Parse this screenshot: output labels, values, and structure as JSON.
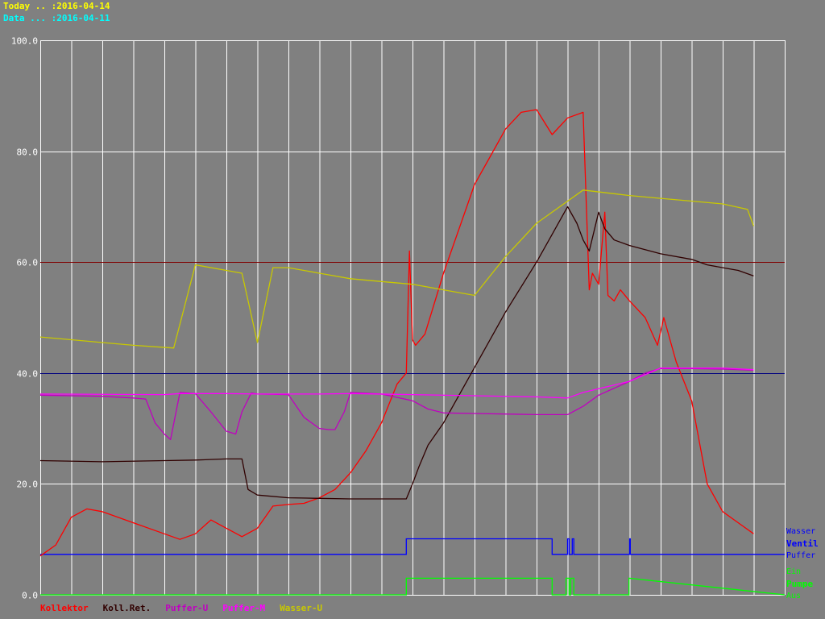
{
  "header": {
    "today": "Today .. :2016-04-14",
    "data": "Data ... :2016-04-11",
    "today_color": "#ffff00",
    "data_color": "#00ffff"
  },
  "colors": {
    "background": "#808080",
    "grid": "#ffffff",
    "axis": "#ffffff"
  },
  "right_labels": {
    "ventil_top": "Wasser",
    "ventil": "Ventil",
    "ventil_bottom": "Puffer",
    "pumpe_top": "Ein",
    "pumpe": "Pumpe",
    "pumpe_bottom": "Aus"
  },
  "chart_data": {
    "type": "line",
    "title": "",
    "xlabel": "",
    "ylabel": "",
    "ylim": [
      0,
      100
    ],
    "yticks": [
      "0.0",
      "20.0",
      "40.0",
      "60.0",
      "80.0",
      "100.0"
    ],
    "grid": true,
    "xlim": [
      0,
      24
    ],
    "legend_position": "bottom-left",
    "reference_lines": [
      {
        "y": 60,
        "color": "#800000"
      },
      {
        "y": 40,
        "color": "#000080"
      }
    ],
    "series": [
      {
        "name": "Kollektor",
        "color": "#ff0000",
        "x": [
          0,
          0.5,
          1,
          1.5,
          2,
          3,
          4,
          4.5,
          5,
          5.5,
          6,
          6.5,
          7,
          7.5,
          8,
          8.5,
          9,
          9.5,
          10,
          10.5,
          11,
          11.5,
          11.8,
          11.9,
          12.0,
          12.1,
          12.4,
          13,
          13.5,
          14,
          14.5,
          15,
          15.5,
          16,
          16.5,
          17,
          17.5,
          17.7,
          17.8,
          18.0,
          18.2,
          18.3,
          18.5,
          18.7,
          19,
          19.5,
          19.9,
          20.1,
          20.5,
          21,
          21.5,
          22,
          22.5,
          23.0
        ],
        "y": [
          7,
          9,
          14,
          15.5,
          15,
          13,
          11,
          10,
          11,
          13.5,
          12,
          10.5,
          12,
          16,
          16.3,
          16.5,
          17.5,
          19,
          22,
          26,
          31,
          38,
          40,
          62,
          46,
          45,
          47,
          58,
          66,
          74,
          79,
          84,
          87,
          87.5,
          83,
          86,
          87,
          55,
          58,
          56,
          69,
          54,
          53,
          55,
          53,
          50,
          45,
          50,
          42,
          35,
          20,
          15,
          13,
          11
        ]
      },
      {
        "name": "Koll.Ret.",
        "color": "#300000",
        "x": [
          0,
          2,
          4,
          5,
          6,
          6.5,
          6.7,
          7,
          8,
          9,
          10,
          11,
          11.8,
          12.0,
          12.2,
          12.5,
          13,
          14,
          15,
          16,
          16.5,
          17,
          17.3,
          17.5,
          17.7,
          18.0,
          18.2,
          18.5,
          19,
          20,
          21,
          21.5,
          22,
          22.5,
          23.0
        ],
        "y": [
          24.2,
          24,
          24.2,
          24.3,
          24.5,
          24.5,
          19,
          18,
          17.5,
          17.4,
          17.3,
          17.3,
          17.3,
          20,
          23,
          27,
          31,
          41,
          51,
          60,
          65,
          70,
          67,
          64,
          62,
          69,
          66,
          64,
          63,
          61.5,
          60.5,
          59.5,
          59,
          58.5,
          57.5
        ]
      },
      {
        "name": "Puffer-U",
        "color": "#c000c0",
        "x": [
          0,
          2,
          3,
          3.4,
          3.7,
          4.0,
          4.2,
          4.5,
          5,
          5.5,
          6,
          6.3,
          6.5,
          6.8,
          7,
          8,
          8.5,
          9,
          9.3,
          9.5,
          9.8,
          10,
          11,
          12,
          12.5,
          13,
          14,
          15,
          16,
          16.5,
          17,
          17.5,
          18,
          19,
          19.5,
          20,
          21,
          22,
          23.0
        ],
        "y": [
          36,
          35.8,
          35.5,
          35.3,
          31,
          29,
          28,
          36.5,
          36.3,
          33,
          29.5,
          29,
          33,
          36.4,
          36.2,
          36.1,
          32,
          30,
          29.8,
          29.8,
          33,
          36.5,
          36.2,
          35,
          33.5,
          32.8,
          32.7,
          32.6,
          32.5,
          32.5,
          32.5,
          34,
          36,
          38.5,
          40,
          40.8,
          40.8,
          40.7,
          40.5
        ]
      },
      {
        "name": "Puffer-M",
        "color": "#ff00ff",
        "x": [
          0,
          4,
          4.5,
          6,
          7,
          8,
          9,
          10,
          12,
          14,
          16,
          17,
          17.5,
          19,
          20,
          22,
          23.0
        ],
        "y": [
          36.2,
          36.1,
          36.3,
          36.3,
          36.2,
          36.2,
          36.2,
          36.3,
          36.1,
          35.9,
          35.7,
          35.5,
          36.5,
          38.5,
          40.9,
          40.9,
          40.6
        ]
      },
      {
        "name": "Wasser-U",
        "color": "#c8c800",
        "x": [
          0,
          1,
          2,
          3,
          4.3,
          5.0,
          6.0,
          6.5,
          7.0,
          7.5,
          8,
          9,
          10,
          11,
          12,
          13,
          14.0,
          15,
          16,
          17.5,
          19,
          20,
          21,
          22,
          22.8,
          23.0
        ],
        "y": [
          46.5,
          46,
          45.5,
          45,
          44.5,
          59.5,
          58.5,
          58,
          45.5,
          59,
          59,
          58,
          57,
          56.5,
          56,
          55,
          54,
          61,
          67,
          73,
          72,
          71.5,
          71,
          70.5,
          69.5,
          66.5
        ]
      }
    ],
    "digital": [
      {
        "name": "Ventil",
        "low": 7.3,
        "high": 10.1,
        "color": "#0000ff",
        "x": [
          0,
          11.8,
          11.8,
          16.5,
          16.5,
          17.0,
          17.0,
          17.05,
          17.05,
          17.15,
          17.15,
          17.2,
          17.2,
          19.0,
          19.0,
          19.02,
          19.02,
          24
        ],
        "state": [
          0,
          0,
          1,
          1,
          0,
          0,
          1,
          1,
          0,
          0,
          1,
          1,
          0,
          0,
          1,
          1,
          0,
          0
        ]
      },
      {
        "name": "Pumpe",
        "low": 0.0,
        "high": 3.0,
        "color": "#00ff00",
        "x": [
          0,
          11.8,
          11.8,
          16.5,
          16.5,
          16.95,
          16.95,
          17.05,
          17.05,
          17.1,
          17.1,
          17.2,
          17.2,
          18.98,
          18.98,
          24
        ],
        "state": [
          0,
          0,
          1,
          1,
          0,
          0,
          1,
          1,
          0,
          0,
          1,
          1,
          0,
          0,
          1,
          0
        ]
      }
    ]
  }
}
